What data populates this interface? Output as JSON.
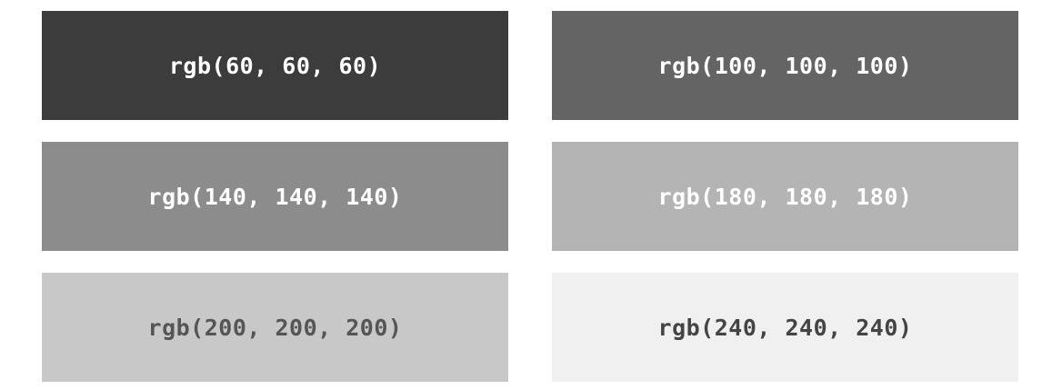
{
  "swatches": [
    {
      "label": "rgb(60, 60, 60)",
      "bg": "#3c3c3c",
      "text_color": "#ffffff"
    },
    {
      "label": "rgb(100, 100, 100)",
      "bg": "#646464",
      "text_color": "#ffffff"
    },
    {
      "label": "rgb(140, 140, 140)",
      "bg": "#8c8c8c",
      "text_color": "#ffffff"
    },
    {
      "label": "rgb(180, 180, 180)",
      "bg": "#b4b4b4",
      "text_color": "#ffffff"
    },
    {
      "label": "rgb(200, 200, 200)",
      "bg": "#c8c8c8",
      "text_color": "#555555"
    },
    {
      "label": "rgb(240, 240, 240)",
      "bg": "#f0f0f0",
      "text_color": "#444444"
    }
  ]
}
